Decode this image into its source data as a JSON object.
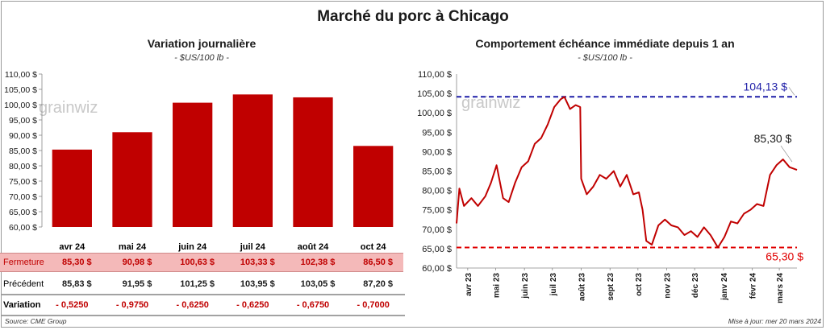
{
  "title": "Marché du porc à Chicago",
  "watermark": "grainwiz",
  "colors": {
    "bar": "#c00000",
    "line": "#c00000",
    "high": "#1f1fa8",
    "low": "#e00000",
    "fermeture_bg": "#f4b9b9"
  },
  "left": {
    "title": "Variation  journalière",
    "subtitle": "- $US/100 lb -",
    "y_ticks": [
      "60,00 $",
      "65,00 $",
      "70,00 $",
      "75,00 $",
      "80,00 $",
      "85,00 $",
      "90,00 $",
      "95,00 $",
      "100,00 $",
      "105,00 $",
      "110,00 $"
    ],
    "table": {
      "months": [
        "avr 24",
        "mai 24",
        "juin 24",
        "juil 24",
        "août 24",
        "oct 24"
      ],
      "fermeture_label": "Fermeture",
      "fermeture": [
        "85,30  $",
        "90,98  $",
        "100,63  $",
        "103,33  $",
        "102,38  $",
        "86,50  $"
      ],
      "precedent_label": "Précédent",
      "precedent": [
        "85,83  $",
        "91,95  $",
        "101,25  $",
        "103,95  $",
        "103,05  $",
        "87,20  $"
      ],
      "variation_label": "Variation",
      "variation": [
        "- 0,5250",
        "- 0,9750",
        "- 0,6250",
        "- 0,6250",
        "- 0,6750",
        "- 0,7000"
      ]
    }
  },
  "right": {
    "title": "Comportement  échéance immédiate  depuis 1 an",
    "subtitle": "- $US/100 lb -",
    "y_ticks": [
      "60,00 $",
      "65,00 $",
      "70,00 $",
      "75,00 $",
      "80,00 $",
      "85,00 $",
      "90,00 $",
      "95,00 $",
      "100,00 $",
      "105,00 $",
      "110,00 $"
    ],
    "x_ticks": [
      "avr 23",
      "mai 23",
      "juin 23",
      "juil 23",
      "août 23",
      "sept 23",
      "oct 23",
      "nov 23",
      "déc 23",
      "janv 24",
      "févr 24",
      "mars 24"
    ],
    "high_label": "104,13 $",
    "low_label": "65,30 $",
    "last_label": "85,30 $"
  },
  "footer": {
    "source": "Source: CME Group",
    "updated": "Mise à jour: mer 20 mars 2024"
  },
  "chart_data": [
    {
      "type": "bar",
      "title": "Variation  journalière",
      "ylabel": "- $US/100 lb -",
      "categories": [
        "avr 24",
        "mai 24",
        "juin 24",
        "juil 24",
        "août 24",
        "oct 24"
      ],
      "values": [
        85.3,
        90.98,
        100.63,
        103.33,
        102.38,
        86.5
      ],
      "ylim": [
        60,
        110
      ],
      "grid": false
    },
    {
      "type": "line",
      "title": "Comportement  échéance immédiate  depuis 1 an",
      "ylabel": "- $US/100 lb -",
      "ylim": [
        60,
        110
      ],
      "xlim": [
        "2023-03-20",
        "2024-03-20"
      ],
      "high": 104.13,
      "low": 65.3,
      "last": 85.3,
      "x": [
        "2023-03-20",
        "2023-03-23",
        "2023-03-28",
        "2023-04-05",
        "2023-04-12",
        "2023-04-20",
        "2023-04-26",
        "2023-05-02",
        "2023-05-09",
        "2023-05-15",
        "2023-05-22",
        "2023-05-29",
        "2023-06-05",
        "2023-06-12",
        "2023-06-19",
        "2023-06-26",
        "2023-07-03",
        "2023-07-10",
        "2023-07-14",
        "2023-07-20",
        "2023-07-26",
        "2023-07-31",
        "2023-08-01",
        "2023-08-07",
        "2023-08-14",
        "2023-08-21",
        "2023-08-28",
        "2023-09-05",
        "2023-09-12",
        "2023-09-19",
        "2023-09-26",
        "2023-10-02",
        "2023-10-06",
        "2023-10-10",
        "2023-10-16",
        "2023-10-23",
        "2023-10-30",
        "2023-11-06",
        "2023-11-13",
        "2023-11-20",
        "2023-11-27",
        "2023-12-04",
        "2023-12-11",
        "2023-12-18",
        "2023-12-26",
        "2024-01-02",
        "2024-01-09",
        "2024-01-16",
        "2024-01-23",
        "2024-01-30",
        "2024-02-06",
        "2024-02-13",
        "2024-02-20",
        "2024-02-27",
        "2024-03-05",
        "2024-03-12",
        "2024-03-20"
      ],
      "y": [
        71.5,
        80.5,
        76.0,
        78.0,
        76.0,
        78.5,
        82.0,
        86.5,
        78.0,
        77.0,
        82.0,
        86.0,
        87.5,
        92.0,
        93.5,
        97.0,
        101.5,
        103.5,
        104.1,
        101.0,
        102.0,
        101.5,
        83.0,
        79.0,
        81.0,
        84.0,
        83.0,
        85.0,
        81.0,
        84.0,
        79.0,
        79.5,
        75.0,
        67.0,
        66.0,
        71.0,
        72.5,
        71.0,
        70.5,
        68.5,
        69.5,
        68.0,
        70.5,
        68.5,
        65.3,
        68.0,
        72.0,
        71.5,
        74.0,
        75.0,
        76.5,
        76.0,
        84.0,
        86.5,
        88.0,
        86.0,
        85.3
      ]
    }
  ]
}
